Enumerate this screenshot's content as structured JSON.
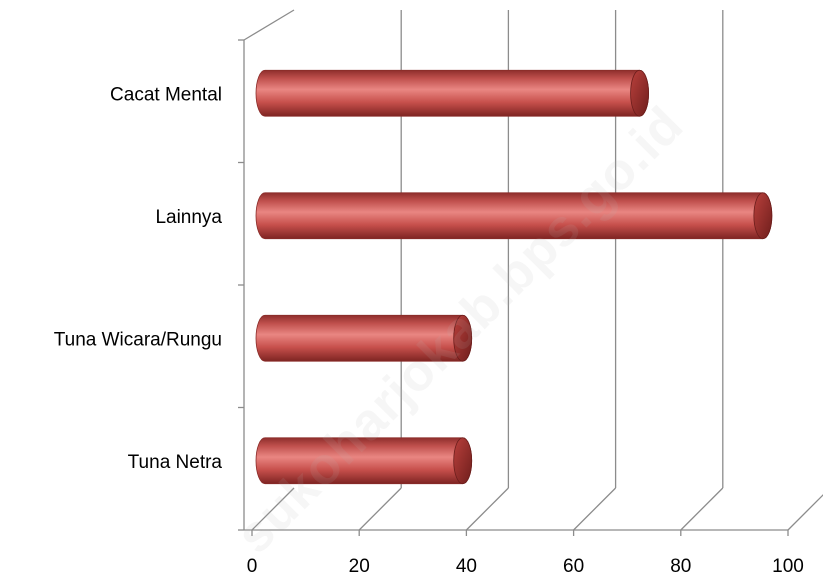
{
  "watermark": "sukoharjokab.bps.go.id",
  "chart_data": {
    "type": "bar",
    "orientation": "horizontal",
    "style": "3d-cylinder",
    "categories": [
      "Cacat Mental",
      "Lainnya",
      "Tuna Wicara/Rungu",
      "Tuna Netra"
    ],
    "values": [
      68,
      91,
      35,
      35
    ],
    "xlim": [
      0,
      100
    ],
    "xticks": [
      "0",
      "20",
      "40",
      "60",
      "80",
      "100"
    ],
    "grid": true,
    "legend": "none",
    "bar_color": "#c0504d"
  }
}
